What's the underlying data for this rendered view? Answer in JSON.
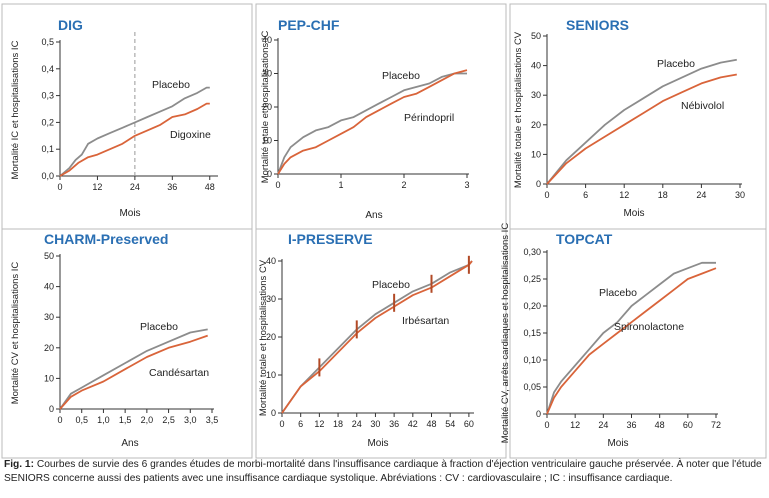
{
  "colors": {
    "placebo": "#8c8c8c",
    "treatment": "#d9643a",
    "title": "#2a6fb3",
    "axis": "#333333",
    "grid": "#bbbbbb"
  },
  "caption": {
    "label": "Fig. 1:",
    "text": "Courbes de survie des 6 grandes études de morbi-mortalité dans l'insuffisance cardiaque à fraction d'éjection ventriculaire gauche préservée. À noter que l'étude SENIORS concerne aussi des patients avec une insuffisance cardiaque systolique. Abréviations : CV : cardiovasculaire ; IC : insuffisance cardiaque."
  },
  "chart_data": [
    {
      "id": "dig",
      "type": "line",
      "title": "DIG",
      "xlabel": "Mois",
      "ylabel": "Mortalité IC et hospitalisations IC",
      "xlim": [
        0,
        50
      ],
      "ylim": [
        0,
        0.5
      ],
      "xticks": [
        0,
        12,
        24,
        36,
        48
      ],
      "xtick_labels": [
        "0",
        "12",
        "24",
        "36",
        "48"
      ],
      "yticks": [
        0,
        0.1,
        0.2,
        0.3,
        0.4,
        0.5
      ],
      "ytick_labels": [
        "0,0",
        "0,1",
        "0,2",
        "0,3",
        "0,4",
        "0,5"
      ],
      "vline": 24,
      "series": [
        {
          "name": "Placebo",
          "role": "placebo",
          "x": [
            0,
            3,
            5,
            7,
            9,
            12,
            16,
            20,
            24,
            28,
            32,
            36,
            40,
            44,
            47,
            48
          ],
          "y": [
            0,
            0.03,
            0.06,
            0.08,
            0.12,
            0.14,
            0.16,
            0.18,
            0.2,
            0.22,
            0.24,
            0.26,
            0.29,
            0.31,
            0.33,
            0.33
          ]
        },
        {
          "name": "Digoxine",
          "role": "treatment",
          "x": [
            0,
            3,
            6,
            9,
            12,
            16,
            20,
            24,
            28,
            32,
            36,
            40,
            44,
            47,
            48
          ],
          "y": [
            0,
            0.02,
            0.05,
            0.07,
            0.08,
            0.1,
            0.12,
            0.15,
            0.17,
            0.19,
            0.22,
            0.23,
            0.25,
            0.27,
            0.27
          ]
        }
      ]
    },
    {
      "id": "pepchf",
      "type": "line",
      "title": "PEP-CHF",
      "xlabel": "Ans",
      "ylabel": "Mortalité totale et hospitalisations IC",
      "xlim": [
        0,
        3
      ],
      "ylim": [
        0,
        40
      ],
      "xticks": [
        0,
        1,
        2,
        3
      ],
      "xtick_labels": [
        "0",
        "1",
        "2",
        "3"
      ],
      "yticks": [
        0,
        10,
        20,
        30,
        40
      ],
      "ytick_labels": [
        "0",
        "10",
        "20",
        "30",
        "40"
      ],
      "series": [
        {
          "name": "Placebo",
          "role": "placebo",
          "x": [
            0,
            0.1,
            0.2,
            0.4,
            0.6,
            0.8,
            1.0,
            1.2,
            1.4,
            1.6,
            1.8,
            2.0,
            2.2,
            2.4,
            2.6,
            2.8,
            3.0
          ],
          "y": [
            0,
            5,
            8,
            11,
            13,
            14,
            16,
            17,
            19,
            21,
            23,
            25,
            26,
            27,
            29,
            30,
            30
          ]
        },
        {
          "name": "Périndopril",
          "role": "treatment",
          "x": [
            0,
            0.1,
            0.2,
            0.4,
            0.6,
            0.8,
            1.0,
            1.2,
            1.4,
            1.6,
            1.8,
            2.0,
            2.2,
            2.4,
            2.6,
            2.8,
            3.0
          ],
          "y": [
            0,
            3,
            5,
            7,
            8,
            10,
            12,
            14,
            17,
            19,
            21,
            23,
            24,
            26,
            28,
            30,
            31
          ]
        }
      ]
    },
    {
      "id": "seniors",
      "type": "line",
      "title": "SENIORS",
      "xlabel": "Mois",
      "ylabel": "Mortalité totale et hospitalisations CV",
      "xlim": [
        0,
        30
      ],
      "ylim": [
        0,
        50
      ],
      "xticks": [
        0,
        6,
        12,
        18,
        24,
        30
      ],
      "xtick_labels": [
        "0",
        "6",
        "12",
        "18",
        "24",
        "30"
      ],
      "yticks": [
        0,
        10,
        20,
        30,
        40,
        50
      ],
      "ytick_labels": [
        "0",
        "10",
        "20",
        "30",
        "40",
        "50"
      ],
      "series": [
        {
          "name": "Placebo",
          "role": "placebo",
          "x": [
            0,
            3,
            6,
            9,
            12,
            15,
            18,
            21,
            24,
            27,
            29.5
          ],
          "y": [
            0,
            8,
            14,
            20,
            25,
            29,
            33,
            36,
            39,
            41,
            42
          ]
        },
        {
          "name": "Nébivolol",
          "role": "treatment",
          "x": [
            0,
            3,
            6,
            9,
            12,
            15,
            18,
            21,
            24,
            27,
            29.5
          ],
          "y": [
            0,
            7,
            12,
            16,
            20,
            24,
            28,
            31,
            34,
            36,
            37
          ]
        }
      ]
    },
    {
      "id": "charm",
      "type": "line",
      "title": "CHARM-Preserved",
      "xlabel": "Ans",
      "ylabel": "Mortalité CV et hospitalisations IC",
      "xlim": [
        0,
        3.5
      ],
      "ylim": [
        0,
        50
      ],
      "xticks": [
        0,
        0.5,
        1.0,
        1.5,
        2.0,
        2.5,
        3.0,
        3.5
      ],
      "xtick_labels": [
        "0",
        "0,5",
        "1,0",
        "1,5",
        "2,0",
        "2,5",
        "3,0",
        "3,5"
      ],
      "yticks": [
        0,
        10,
        20,
        30,
        40,
        50
      ],
      "ytick_labels": [
        "0",
        "10",
        "20",
        "30",
        "40",
        "50"
      ],
      "series": [
        {
          "name": "Placebo",
          "role": "placebo",
          "x": [
            0,
            0.25,
            0.5,
            1.0,
            1.5,
            2.0,
            2.5,
            3.0,
            3.4
          ],
          "y": [
            0,
            5,
            7,
            11,
            15,
            19,
            22,
            25,
            26
          ]
        },
        {
          "name": "Candésartan",
          "role": "treatment",
          "x": [
            0,
            0.25,
            0.5,
            1.0,
            1.5,
            2.0,
            2.5,
            3.0,
            3.4
          ],
          "y": [
            0,
            4,
            6,
            9,
            13,
            17,
            20,
            22,
            24
          ]
        }
      ]
    },
    {
      "id": "ipreserve",
      "type": "line",
      "title": "I-PRESERVE",
      "xlabel": "Mois",
      "ylabel": "Mortalité totale et hospitalisations CV",
      "xlim": [
        0,
        61
      ],
      "ylim": [
        0,
        40
      ],
      "xticks": [
        0,
        6,
        12,
        18,
        24,
        30,
        36,
        42,
        48,
        54,
        60
      ],
      "xtick_labels": [
        "0",
        "6",
        "12",
        "18",
        "24",
        "30",
        "36",
        "42",
        "48",
        "54",
        "60"
      ],
      "yticks": [
        0,
        10,
        20,
        30,
        40
      ],
      "ytick_labels": [
        "0",
        "10",
        "20",
        "30",
        "40"
      ],
      "error_bars_x": [
        12,
        24,
        36,
        48,
        60
      ],
      "series": [
        {
          "name": "Placebo",
          "role": "placebo",
          "x": [
            0,
            6,
            12,
            18,
            24,
            30,
            36,
            42,
            48,
            54,
            60,
            61
          ],
          "y": [
            0,
            7,
            12,
            17,
            22,
            26,
            29,
            32,
            34,
            37,
            39,
            40
          ]
        },
        {
          "name": "Irbésartan",
          "role": "treatment",
          "x": [
            0,
            6,
            12,
            18,
            24,
            30,
            36,
            42,
            48,
            54,
            60,
            61
          ],
          "y": [
            0,
            7,
            11,
            16,
            21,
            25,
            28,
            31,
            33,
            36,
            39,
            40
          ]
        }
      ]
    },
    {
      "id": "topcat",
      "type": "line",
      "title": "TOPCAT",
      "xlabel": "Mois",
      "ylabel": "Mortalité CV, arrêts cardiaques et hospitalisations IC",
      "xlim": [
        0,
        72
      ],
      "ylim": [
        0,
        0.3
      ],
      "xticks": [
        0,
        12,
        24,
        36,
        48,
        60,
        72
      ],
      "xtick_labels": [
        "0",
        "12",
        "24",
        "36",
        "48",
        "60",
        "72"
      ],
      "yticks": [
        0,
        0.05,
        0.1,
        0.15,
        0.2,
        0.25,
        0.3
      ],
      "ytick_labels": [
        "0",
        "0,05",
        "0,10",
        "0,15",
        "0,20",
        "0,25",
        "0,30"
      ],
      "series": [
        {
          "name": "Placebo",
          "role": "placebo",
          "x": [
            0,
            3,
            6,
            12,
            18,
            24,
            30,
            36,
            42,
            48,
            54,
            60,
            66,
            72
          ],
          "y": [
            0,
            0.04,
            0.06,
            0.09,
            0.12,
            0.15,
            0.17,
            0.2,
            0.22,
            0.24,
            0.26,
            0.27,
            0.28,
            0.28
          ]
        },
        {
          "name": "Spironolactone",
          "role": "treatment",
          "x": [
            0,
            3,
            6,
            12,
            18,
            24,
            30,
            36,
            42,
            48,
            54,
            60,
            66,
            72
          ],
          "y": [
            0,
            0.03,
            0.05,
            0.08,
            0.11,
            0.13,
            0.15,
            0.17,
            0.19,
            0.21,
            0.23,
            0.25,
            0.26,
            0.27
          ]
        }
      ]
    }
  ]
}
